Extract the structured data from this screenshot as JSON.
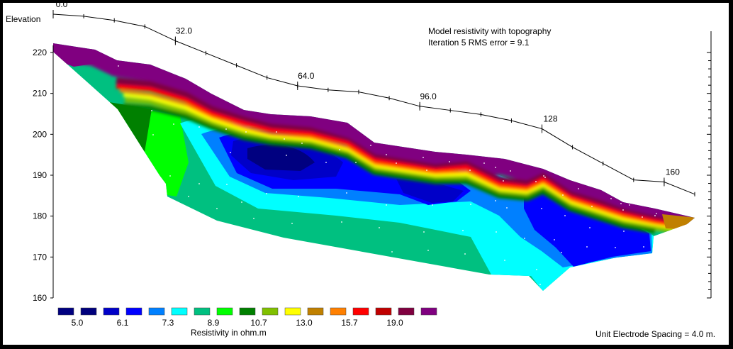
{
  "chart_data": {
    "type": "heatmap",
    "title": "Model resistivity with topography",
    "subtitle": "Iteration 5 RMS error = 9.1",
    "ylabel": "Elevation",
    "ylim": [
      160,
      225
    ],
    "yticks": [
      160,
      170,
      180,
      190,
      200,
      210,
      220
    ],
    "xlim": [
      0,
      171
    ],
    "xticks": [
      0.0,
      32.0,
      64.0,
      96.0,
      128,
      160
    ],
    "xtick_labels": [
      "0.0",
      "32.0",
      "64.0",
      "96.0",
      "128",
      "160"
    ],
    "surface_topography": [
      {
        "x": 0,
        "elev": 224.5
      },
      {
        "x": 8,
        "elev": 224
      },
      {
        "x": 16,
        "elev": 223
      },
      {
        "x": 24,
        "elev": 221.5
      },
      {
        "x": 32,
        "elev": 218
      },
      {
        "x": 40,
        "elev": 215
      },
      {
        "x": 48,
        "elev": 212
      },
      {
        "x": 56,
        "elev": 209
      },
      {
        "x": 64,
        "elev": 207
      },
      {
        "x": 72,
        "elev": 206
      },
      {
        "x": 80,
        "elev": 205.5
      },
      {
        "x": 88,
        "elev": 204
      },
      {
        "x": 96,
        "elev": 202
      },
      {
        "x": 104,
        "elev": 201
      },
      {
        "x": 112,
        "elev": 200
      },
      {
        "x": 120,
        "elev": 198.5
      },
      {
        "x": 128,
        "elev": 196.5
      },
      {
        "x": 136,
        "elev": 192
      },
      {
        "x": 144,
        "elev": 188
      },
      {
        "x": 152,
        "elev": 184
      },
      {
        "x": 160,
        "elev": 183.5
      },
      {
        "x": 168,
        "elev": 180.5
      }
    ],
    "resistivity_scale": {
      "unit_label": "Resistivity in ohm.m",
      "colors": [
        "#000080",
        "#00007c",
        "#0000c8",
        "#0000ff",
        "#0080ff",
        "#00ffff",
        "#00c080",
        "#00ff00",
        "#008000",
        "#80c000",
        "#ffff00",
        "#c08000",
        "#ff8000",
        "#ff0000",
        "#c00000",
        "#800040",
        "#800080"
      ],
      "tick_labels": [
        "5.0",
        "6.1",
        "7.3",
        "8.9",
        "10.7",
        "13.0",
        "15.7",
        "19.0"
      ]
    },
    "note": "Unit Electrode Spacing = 4.0 m."
  }
}
